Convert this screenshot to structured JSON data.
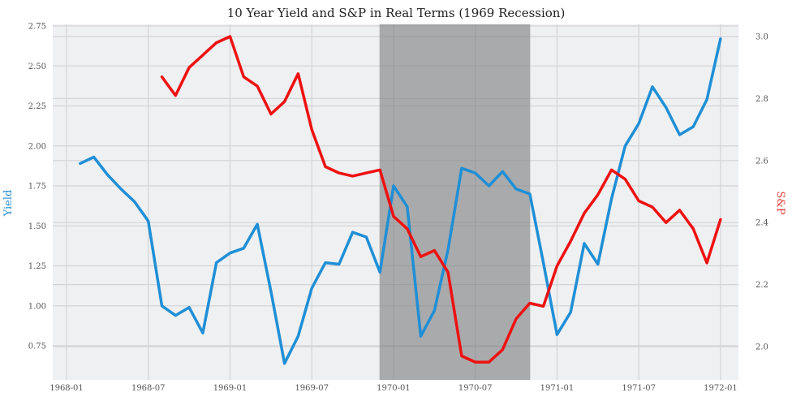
{
  "chart_data": {
    "type": "line",
    "title": "10 Year Yield and S&P in Real Terms (1969 Recession)",
    "xlabel": "",
    "ylabel_left": "Yield",
    "ylabel_right": "S&P",
    "x_ticks": [
      "1968-01",
      "1968-07",
      "1969-01",
      "1969-07",
      "1970-01",
      "1970-07",
      "1971-01",
      "1971-07",
      "1972-01"
    ],
    "y_left_ticks": [
      "0.75",
      "1.00",
      "1.25",
      "1.50",
      "1.75",
      "2.00",
      "2.25",
      "2.50",
      "2.75"
    ],
    "y_right_ticks": [
      "2.0",
      "2.2",
      "2.4",
      "2.6",
      "2.8",
      "3.0"
    ],
    "ylim_left": [
      0.55,
      2.75
    ],
    "ylim_right": [
      1.91,
      3.03
    ],
    "grid": true,
    "legend": null,
    "recession_shade": {
      "start": "1969-12",
      "end": "1970-11",
      "color": "#a9aaac"
    },
    "series": [
      {
        "name": "Yield",
        "axis": "left",
        "color": "#1f8fd6",
        "start_month_index": 1,
        "x": [
          "1968-02",
          "1968-03",
          "1968-04",
          "1968-05",
          "1968-06",
          "1968-07",
          "1968-08",
          "1968-09",
          "1968-10",
          "1968-11",
          "1968-12",
          "1969-01",
          "1969-02",
          "1969-03",
          "1969-04",
          "1969-05",
          "1969-06",
          "1969-07",
          "1969-08",
          "1969-09",
          "1969-10",
          "1969-11",
          "1969-12",
          "1970-01",
          "1970-02",
          "1970-03",
          "1970-04",
          "1970-05",
          "1970-06",
          "1970-07",
          "1970-08",
          "1970-09",
          "1970-10",
          "1970-11",
          "1970-12",
          "1971-01",
          "1971-02",
          "1971-03",
          "1971-04",
          "1971-05",
          "1971-06",
          "1971-07",
          "1971-08",
          "1971-09",
          "1971-10",
          "1971-11",
          "1971-12",
          "1972-01"
        ],
        "values": [
          1.89,
          1.93,
          1.82,
          1.73,
          1.65,
          1.53,
          1.0,
          0.94,
          0.99,
          0.83,
          1.27,
          1.33,
          1.36,
          1.51,
          1.09,
          0.64,
          0.81,
          1.11,
          1.27,
          1.26,
          1.46,
          1.43,
          1.21,
          1.75,
          1.62,
          0.81,
          0.97,
          1.35,
          1.86,
          1.83,
          1.75,
          1.84,
          1.73,
          1.7,
          1.27,
          0.82,
          0.96,
          1.39,
          1.26,
          1.67,
          2.0,
          2.14,
          2.37,
          2.24,
          2.07,
          2.12,
          2.29,
          2.67
        ]
      },
      {
        "name": "S&P",
        "axis": "right",
        "color": "#ee1111",
        "start_month_index": 7,
        "x": [
          "1968-08",
          "1968-09",
          "1968-10",
          "1968-11",
          "1968-12",
          "1969-01",
          "1969-02",
          "1969-03",
          "1969-04",
          "1969-05",
          "1969-06",
          "1969-07",
          "1969-08",
          "1969-09",
          "1969-10",
          "1969-11",
          "1969-12",
          "1970-01",
          "1970-02",
          "1970-03",
          "1970-04",
          "1970-05",
          "1970-06",
          "1970-07",
          "1970-08",
          "1970-09",
          "1970-10",
          "1970-11",
          "1970-12",
          "1971-01",
          "1971-02",
          "1971-03",
          "1971-04",
          "1971-05",
          "1971-06",
          "1971-07",
          "1971-08",
          "1971-09",
          "1971-10",
          "1971-11",
          "1971-12",
          "1972-01"
        ],
        "values": [
          2.87,
          2.81,
          2.9,
          2.94,
          2.98,
          3.0,
          2.87,
          2.84,
          2.75,
          2.79,
          2.88,
          2.7,
          2.58,
          2.56,
          2.55,
          2.56,
          2.57,
          2.42,
          2.38,
          2.29,
          2.31,
          2.24,
          1.97,
          1.95,
          1.95,
          1.99,
          2.09,
          2.14,
          2.13,
          2.26,
          2.34,
          2.43,
          2.49,
          2.57,
          2.54,
          2.47,
          2.45,
          2.4,
          2.44,
          2.38,
          2.27,
          2.41
        ]
      }
    ]
  }
}
